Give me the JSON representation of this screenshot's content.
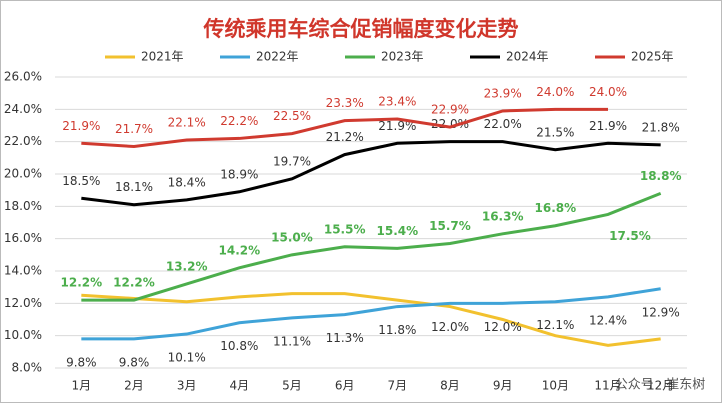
{
  "chart_data": {
    "type": "line",
    "title": "传统乘用车综合促销幅度变化走势",
    "watermark": "公众号 · 崔东树",
    "categories": [
      "1月",
      "2月",
      "3月",
      "4月",
      "5月",
      "6月",
      "7月",
      "8月",
      "9月",
      "10月",
      "11月",
      "12月"
    ],
    "ylim": [
      8,
      26
    ],
    "yticks": [
      {
        "value": 8,
        "label": "8.0%"
      },
      {
        "value": 10,
        "label": "10.0%"
      },
      {
        "value": 12,
        "label": "12.0%"
      },
      {
        "value": 14,
        "label": "14.0%"
      },
      {
        "value": 16,
        "label": "16.0%"
      },
      {
        "value": 18,
        "label": "18.0%"
      },
      {
        "value": 20,
        "label": "20.0%"
      },
      {
        "value": 22,
        "label": "22.0%"
      },
      {
        "value": 24,
        "label": "24.0%"
      },
      {
        "value": 26,
        "label": "26.0%"
      }
    ],
    "grid": true,
    "legend": "top",
    "series": [
      {
        "name": "2021年",
        "color": "#f2c12e",
        "values": [
          12.5,
          12.3,
          12.1,
          12.4,
          12.6,
          12.6,
          12.2,
          11.8,
          11.0,
          10.0,
          9.4,
          9.8
        ]
      },
      {
        "name": "2022年",
        "color": "#3fa3d8",
        "values": [
          9.8,
          9.8,
          10.1,
          10.8,
          11.1,
          11.3,
          11.8,
          12.0,
          12.0,
          12.1,
          12.4,
          12.9
        ],
        "value_labels": [
          "9.8%",
          "9.8%",
          "10.1%",
          "10.8%",
          "11.1%",
          "11.3%",
          "11.8%",
          "12.0%",
          "12.0%",
          "12.1%",
          "12.4%",
          "12.9%"
        ]
      },
      {
        "name": "2023年",
        "color": "#4cae4c",
        "values": [
          12.2,
          12.2,
          13.2,
          14.2,
          15.0,
          15.5,
          15.4,
          15.7,
          16.3,
          16.8,
          17.5,
          18.8
        ],
        "value_labels": [
          "12.2%",
          "12.2%",
          "13.2%",
          "14.2%",
          "15.0%",
          "15.5%",
          "15.4%",
          "15.7%",
          "16.3%",
          "16.8%",
          "17.5%",
          "18.8%"
        ]
      },
      {
        "name": "2024年",
        "color": "#000000",
        "values": [
          18.5,
          18.1,
          18.4,
          18.9,
          19.7,
          21.2,
          21.9,
          22.0,
          22.0,
          21.5,
          21.9,
          21.8
        ],
        "value_labels": [
          "18.5%",
          "18.1%",
          "18.4%",
          "18.9%",
          "19.7%",
          "21.2%",
          "21.9%",
          "22.0%",
          "22.0%",
          "21.5%",
          "21.9%",
          "21.8%"
        ]
      },
      {
        "name": "2025年",
        "color": "#d03a2f",
        "values": [
          21.9,
          21.7,
          22.1,
          22.2,
          22.5,
          23.3,
          23.4,
          22.9,
          23.9,
          24.0,
          24.0,
          null
        ],
        "value_labels": [
          "21.9%",
          "21.7%",
          "22.1%",
          "22.2%",
          "22.5%",
          "23.3%",
          "23.4%",
          "22.9%",
          "23.9%",
          "24.0%",
          "24.0%",
          null
        ]
      }
    ]
  }
}
